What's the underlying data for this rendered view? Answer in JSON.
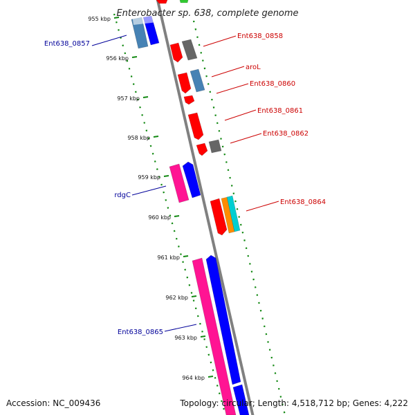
{
  "title": "Enterobacter sp. 638, complete genome",
  "footer": {
    "accession": "Accession: NC_009436",
    "topology": "Topology: circular; Length: 4,518,712 bp; Genes: 4,222"
  },
  "colors": {
    "backbone": "#808080",
    "tick_green": "#118811",
    "label_red": "#cc0000",
    "label_blue": "#000099",
    "gene_red": "#ff0000",
    "gene_blue": "#0000ff",
    "gene_steel": "#4682b4",
    "gene_gray": "#666666",
    "gene_pink": "#ff1493",
    "gene_orange": "#ff8c00",
    "gene_cyan": "#00ced1",
    "gene_green": "#33cc33"
  },
  "ticks": [
    "955 kbp",
    "956 kbp",
    "957 kbp",
    "958 kbp",
    "959 kbp",
    "960 kbp",
    "961 kbp",
    "962 kbp",
    "963 kbp",
    "964 kbp"
  ],
  "gene_labels": {
    "ent0857": "Ent638_0857",
    "ent0858": "Ent638_0858",
    "arol": "aroL",
    "ent0860": "Ent638_0860",
    "ent0861": "Ent638_0861",
    "ent0862": "Ent638_0862",
    "rdgc": "rdgC",
    "ent0864": "Ent638_0864",
    "ent0865": "Ent638_0865"
  }
}
